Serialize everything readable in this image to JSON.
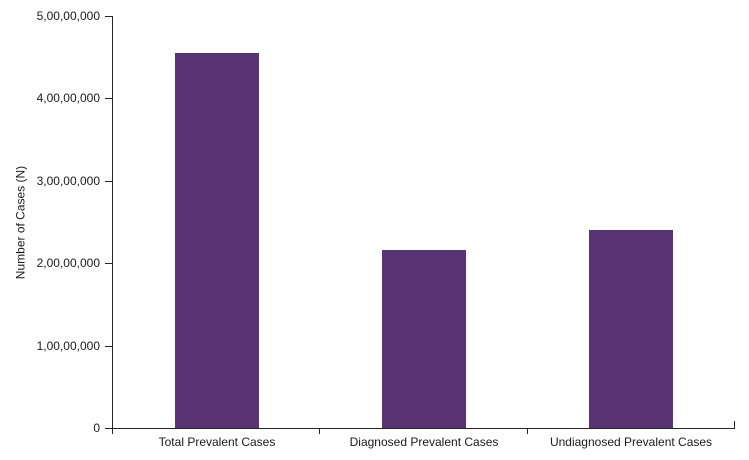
{
  "chart_data": {
    "type": "bar",
    "title": "",
    "categories": [
      "Total Prevalent Cases",
      "Diagnosed Prevalent Cases",
      "Undiagnosed Prevalent Cases"
    ],
    "values": [
      45500000,
      21600000,
      24000000
    ],
    "xlabel": "",
    "ylabel": "Number of Cases (N)",
    "ylim": [
      0,
      50000000
    ],
    "ytick_interval": 10000000,
    "ytick_labels": [
      "0",
      "1,00,00,000",
      "2,00,00,000",
      "3,00,00,000",
      "4,00,00,000",
      "5,00,00,000"
    ],
    "grid": false,
    "legend": false,
    "bar_color": "#593373",
    "axis_color": "#262626",
    "text_color": "#1a1a1a",
    "background_color": "#ffffff"
  }
}
